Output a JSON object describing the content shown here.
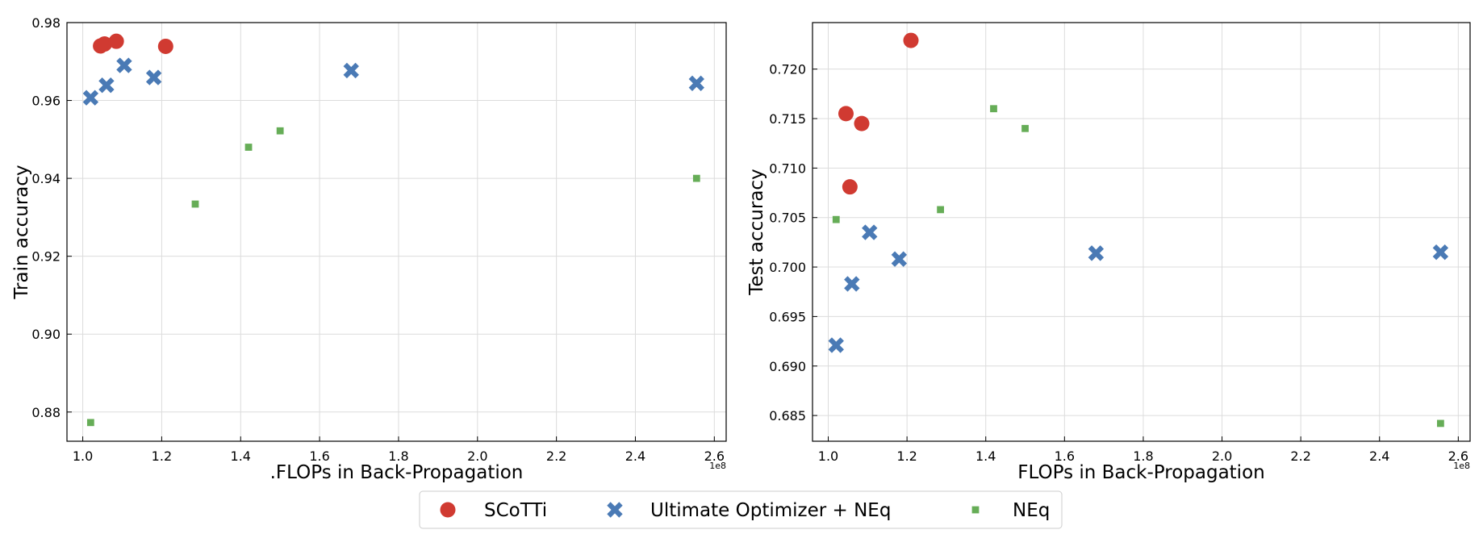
{
  "chart_data": [
    {
      "type": "scatter",
      "xlabel": ".FLOPs in Back-Propagation",
      "ylabel": "Train accuracy",
      "x_offset_label": "1e8",
      "xlim": [
        0.96,
        2.63
      ],
      "ylim": [
        0.8725,
        0.98
      ],
      "x_ticks": [
        "1.0",
        "1.2",
        "1.4",
        "1.6",
        "1.8",
        "2.0",
        "2.2",
        "2.4",
        "2.6"
      ],
      "y_ticks": [
        "0.88",
        "0.90",
        "0.92",
        "0.94",
        "0.96",
        "0.98"
      ],
      "grid": true,
      "series": [
        {
          "name": "SCoTTi",
          "color": "#d03a31",
          "marker": "circle",
          "x": [
            1.045,
            1.055,
            1.085,
            1.21
          ],
          "y": [
            0.974,
            0.9745,
            0.9752,
            0.9739
          ]
        },
        {
          "name": "Ultimate Optimizer + NEq",
          "color": "#4a7ab5",
          "marker": "x",
          "x": [
            1.02,
            1.06,
            1.105,
            1.18,
            1.68,
            2.555
          ],
          "y": [
            0.9607,
            0.9639,
            0.969,
            0.9659,
            0.9677,
            0.9644
          ]
        },
        {
          "name": "NEq",
          "color": "#66ad57",
          "marker": "square",
          "x": [
            1.02,
            1.285,
            1.42,
            1.5,
            2.555
          ],
          "y": [
            0.8773,
            0.9334,
            0.948,
            0.9522,
            0.94
          ]
        }
      ]
    },
    {
      "type": "scatter",
      "xlabel": "FLOPs in Back-Propagation",
      "ylabel": "Test accuracy",
      "x_offset_label": "1e8",
      "xlim": [
        0.96,
        2.63
      ],
      "ylim": [
        0.6824,
        0.7247
      ],
      "x_ticks": [
        "1.0",
        "1.2",
        "1.4",
        "1.6",
        "1.8",
        "2.0",
        "2.2",
        "2.4",
        "2.6"
      ],
      "y_ticks": [
        "0.685",
        "0.690",
        "0.695",
        "0.700",
        "0.705",
        "0.710",
        "0.715",
        "0.720"
      ],
      "grid": true,
      "series": [
        {
          "name": "SCoTTi",
          "color": "#d03a31",
          "marker": "circle",
          "x": [
            1.045,
            1.055,
            1.085,
            1.21
          ],
          "y": [
            0.7155,
            0.7081,
            0.7145,
            0.7229
          ]
        },
        {
          "name": "Ultimate Optimizer + NEq",
          "color": "#4a7ab5",
          "marker": "x",
          "x": [
            1.02,
            1.06,
            1.105,
            1.18,
            1.68,
            2.555
          ],
          "y": [
            0.6921,
            0.6983,
            0.7035,
            0.7008,
            0.7014,
            0.7015
          ]
        },
        {
          "name": "NEq",
          "color": "#66ad57",
          "marker": "square",
          "x": [
            1.02,
            1.285,
            1.42,
            1.5,
            2.555
          ],
          "y": [
            0.7048,
            0.7058,
            0.716,
            0.714,
            0.6842
          ]
        }
      ]
    }
  ],
  "legend": {
    "placement": "bottom-center",
    "items": [
      {
        "label": "SCoTTi",
        "marker": "circle",
        "color": "#d03a31"
      },
      {
        "label": "Ultimate Optimizer + NEq",
        "marker": "x",
        "color": "#4a7ab5"
      },
      {
        "label": "NEq",
        "marker": "square",
        "color": "#66ad57"
      }
    ]
  }
}
